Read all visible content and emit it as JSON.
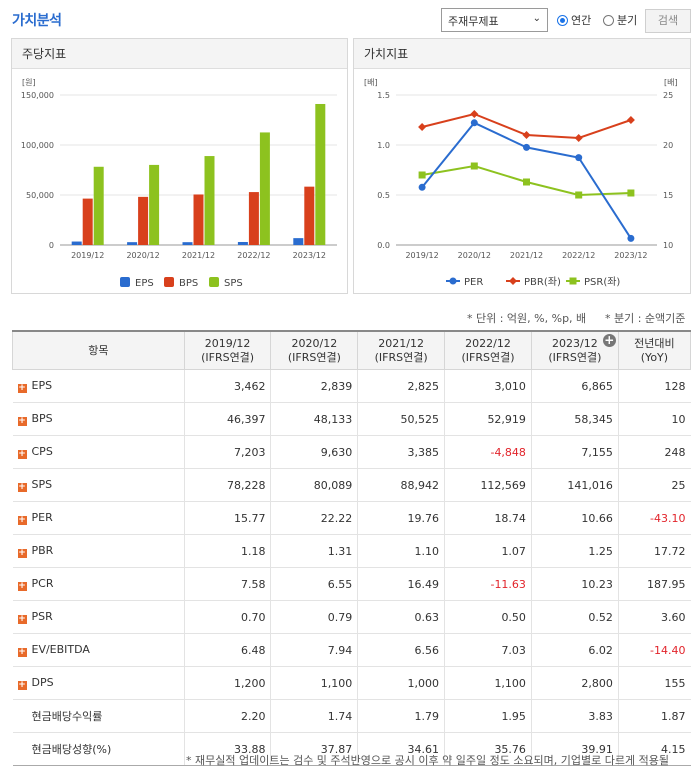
{
  "header": {
    "title": "가치분석",
    "select_value": "주재무제표",
    "radio_annual": "연간",
    "radio_quarter": "분기",
    "search_label": "검색"
  },
  "per_share_panel": {
    "title": "주당지표",
    "unit": "[원]",
    "legend": [
      "EPS",
      "BPS",
      "SPS"
    ]
  },
  "value_panel": {
    "title": "가치지표",
    "unit_left": "[배]",
    "unit_right": "[배]",
    "legend": [
      "PER",
      "PBR(좌)",
      "PSR(좌)"
    ]
  },
  "chart_data": [
    {
      "type": "bar",
      "categories": [
        "2019/12",
        "2020/12",
        "2021/12",
        "2022/12",
        "2023/12"
      ],
      "series": [
        {
          "name": "EPS",
          "color": "#2a6ccf",
          "values": [
            3462,
            2839,
            2825,
            3010,
            6865
          ]
        },
        {
          "name": "BPS",
          "color": "#d8401c",
          "values": [
            46397,
            48133,
            50525,
            52919,
            58345
          ]
        },
        {
          "name": "SPS",
          "color": "#8dc21f",
          "values": [
            78228,
            80089,
            88942,
            112569,
            141016
          ]
        }
      ],
      "ylabel": "[원]",
      "ylim": [
        0,
        150000
      ],
      "yticks": [
        "0",
        "50,000",
        "100,000",
        "150,000"
      ],
      "grid": true,
      "legend": "bottom"
    },
    {
      "type": "line",
      "categories": [
        "2019/12",
        "2020/12",
        "2021/12",
        "2022/12",
        "2023/12"
      ],
      "series": [
        {
          "name": "PER",
          "color": "#2a6ccf",
          "axis": "right",
          "marker": "circle",
          "values": [
            15.77,
            22.22,
            19.76,
            18.74,
            10.66
          ]
        },
        {
          "name": "PBR(좌)",
          "color": "#d8401c",
          "axis": "left",
          "marker": "diamond",
          "values": [
            1.18,
            1.31,
            1.1,
            1.07,
            1.25
          ]
        },
        {
          "name": "PSR(좌)",
          "color": "#8dc21f",
          "axis": "left",
          "marker": "square",
          "values": [
            0.7,
            0.79,
            0.63,
            0.5,
            0.52
          ]
        }
      ],
      "ylim_left": [
        0,
        1.5
      ],
      "yticks_left": [
        "0.0",
        "0.5",
        "1.0",
        "1.5"
      ],
      "ylim_right": [
        10,
        25
      ],
      "yticks_right": [
        "10",
        "15",
        "20",
        "25"
      ],
      "grid": true,
      "legend": "bottom"
    }
  ],
  "notes": {
    "unit": "* 단위 : 억원, %, %p, 배",
    "quarter": "* 분기 : 순액기준",
    "footer": "* 재무실적 업데이트는 검수 및 주석반영으로 공시 이후 약 일주일 정도 소요되며, 기업별로 다르게 적용될"
  },
  "table": {
    "header_item": "항목",
    "columns": [
      {
        "period": "2019/12",
        "basis": "(IFRS연결)"
      },
      {
        "period": "2020/12",
        "basis": "(IFRS연결)"
      },
      {
        "period": "2021/12",
        "basis": "(IFRS연결)"
      },
      {
        "period": "2022/12",
        "basis": "(IFRS연결)"
      },
      {
        "period": "2023/12",
        "basis": "(IFRS연결)"
      }
    ],
    "yoy_line1": "전년대비",
    "yoy_line2": "(YoY)",
    "rows": [
      {
        "label": "EPS",
        "expand": true,
        "values": [
          "3,462",
          "2,839",
          "2,825",
          "3,010",
          "6,865"
        ],
        "yoy": "128"
      },
      {
        "label": "BPS",
        "expand": true,
        "values": [
          "46,397",
          "48,133",
          "50,525",
          "52,919",
          "58,345"
        ],
        "yoy": "10"
      },
      {
        "label": "CPS",
        "expand": true,
        "values": [
          "7,203",
          "9,630",
          "3,385",
          "-4,848",
          "7,155"
        ],
        "yoy": "248"
      },
      {
        "label": "SPS",
        "expand": true,
        "values": [
          "78,228",
          "80,089",
          "88,942",
          "112,569",
          "141,016"
        ],
        "yoy": "25"
      },
      {
        "label": "PER",
        "expand": true,
        "values": [
          "15.77",
          "22.22",
          "19.76",
          "18.74",
          "10.66"
        ],
        "yoy": "-43.10"
      },
      {
        "label": "PBR",
        "expand": true,
        "values": [
          "1.18",
          "1.31",
          "1.10",
          "1.07",
          "1.25"
        ],
        "yoy": "17.72"
      },
      {
        "label": "PCR",
        "expand": true,
        "values": [
          "7.58",
          "6.55",
          "16.49",
          "-11.63",
          "10.23"
        ],
        "yoy": "187.95"
      },
      {
        "label": "PSR",
        "expand": true,
        "values": [
          "0.70",
          "0.79",
          "0.63",
          "0.50",
          "0.52"
        ],
        "yoy": "3.60"
      },
      {
        "label": "EV/EBITDA",
        "expand": true,
        "values": [
          "6.48",
          "7.94",
          "6.56",
          "7.03",
          "6.02"
        ],
        "yoy": "-14.40"
      },
      {
        "label": "DPS",
        "expand": true,
        "values": [
          "1,200",
          "1,100",
          "1,000",
          "1,100",
          "2,800"
        ],
        "yoy": "155"
      },
      {
        "label": "현금배당수익률",
        "expand": false,
        "values": [
          "2.20",
          "1.74",
          "1.79",
          "1.95",
          "3.83"
        ],
        "yoy": "1.87"
      },
      {
        "label": "현금배당성향(%)",
        "expand": false,
        "values": [
          "33.88",
          "37.87",
          "34.61",
          "35.76",
          "39.91"
        ],
        "yoy": "4.15"
      }
    ]
  }
}
